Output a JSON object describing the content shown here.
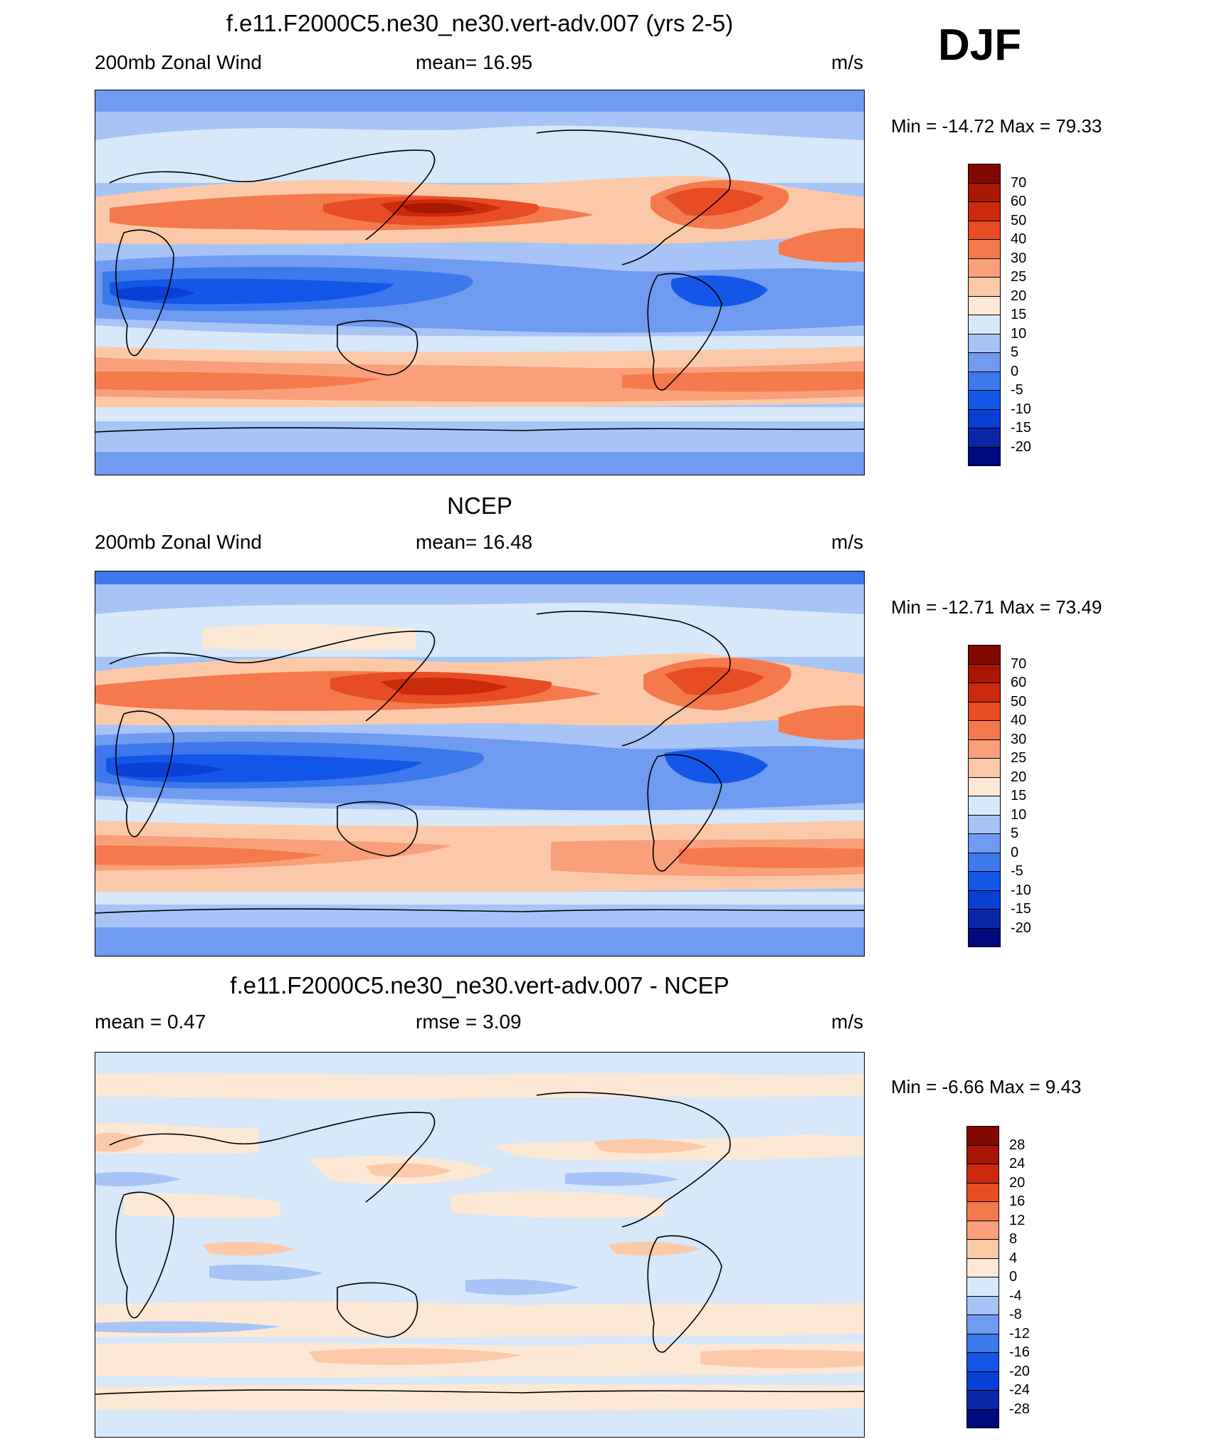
{
  "season": "DJF",
  "colors": {
    "wind": [
      "#000a80",
      "#0a27a8",
      "#0a3fd4",
      "#1457e8",
      "#3d78ec",
      "#6f9bf0",
      "#a6c4f6",
      "#d6e8fa",
      "#fde8d6",
      "#fcc9a8",
      "#f9a07a",
      "#f47a4e",
      "#e84c24",
      "#cc2a0c",
      "#a81604",
      "#820800"
    ],
    "diff": [
      "#000a80",
      "#0a27a8",
      "#0a3fd4",
      "#1457e8",
      "#3d78ec",
      "#6f9bf0",
      "#a6c4f6",
      "#d6e8fa",
      "#fde8d6",
      "#fcc9a8",
      "#f9a07a",
      "#f47a4e",
      "#e84c24",
      "#cc2a0c",
      "#a81604",
      "#820800"
    ]
  },
  "panels": [
    {
      "title": "f.e11.F2000C5.ne30_ne30.vert-adv.007 (yrs 2-5)",
      "left": "200mb Zonal Wind",
      "center": "mean=  16.95",
      "right": "m/s",
      "minmax": "Min = -14.72 Max =  79.33",
      "colorbar": {
        "scheme": "wind",
        "labels": [
          "70",
          "60",
          "50",
          "40",
          "30",
          "25",
          "20",
          "15",
          "10",
          "5",
          "0",
          "-5",
          "-10",
          "-15",
          "-20"
        ]
      }
    },
    {
      "title": "NCEP",
      "left": "200mb Zonal Wind",
      "center": "mean=  16.48",
      "right": "m/s",
      "minmax": "Min = -12.71 Max =  73.49",
      "colorbar": {
        "scheme": "wind",
        "labels": [
          "70",
          "60",
          "50",
          "40",
          "30",
          "25",
          "20",
          "15",
          "10",
          "5",
          "0",
          "-5",
          "-10",
          "-15",
          "-20"
        ]
      }
    },
    {
      "title": "f.e11.F2000C5.ne30_ne30.vert-adv.007 - NCEP",
      "left": "mean =   0.47",
      "center": "rmse =   3.09",
      "right": "m/s",
      "minmax": "Min =  -6.66 Max =   9.43",
      "colorbar": {
        "scheme": "diff",
        "labels": [
          "28",
          "24",
          "20",
          "16",
          "12",
          "8",
          "4",
          "0",
          "-4",
          "-8",
          "-12",
          "-16",
          "-20",
          "-24",
          "-28"
        ]
      }
    }
  ]
}
